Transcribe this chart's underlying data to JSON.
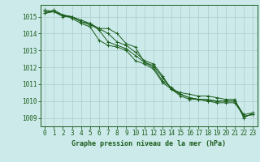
{
  "title": "Graphe pression niveau de la mer (hPa)",
  "background_color": "#cceaea",
  "grid_color": "#aacccc",
  "line_color": "#1a5c1a",
  "xlim": [
    -0.5,
    23.5
  ],
  "ylim": [
    1008.5,
    1015.7
  ],
  "yticks": [
    1009,
    1010,
    1011,
    1012,
    1013,
    1014,
    1015
  ],
  "xticks": [
    0,
    1,
    2,
    3,
    4,
    5,
    6,
    7,
    8,
    9,
    10,
    11,
    12,
    13,
    14,
    15,
    16,
    17,
    18,
    19,
    20,
    21,
    22,
    23
  ],
  "series": [
    [
      1015.2,
      1015.4,
      1015.1,
      1015.0,
      1014.8,
      1014.6,
      1014.3,
      1014.3,
      1014.0,
      1013.4,
      1013.2,
      1012.3,
      1012.1,
      1011.4,
      1010.7,
      1010.5,
      1010.4,
      1010.3,
      1010.3,
      1010.2,
      1010.1,
      1010.1,
      1009.0,
      1009.3
    ],
    [
      1015.2,
      1015.3,
      1015.0,
      1015.0,
      1014.7,
      1014.6,
      1014.2,
      1013.5,
      1013.3,
      1013.1,
      1012.7,
      1012.3,
      1012.0,
      1011.2,
      1010.8,
      1010.4,
      1010.2,
      1010.1,
      1010.1,
      1010.0,
      1010.0,
      1010.0,
      1009.2,
      1009.3
    ],
    [
      1015.3,
      1015.3,
      1015.1,
      1014.9,
      1014.6,
      1014.4,
      1013.6,
      1013.3,
      1013.2,
      1013.0,
      1012.4,
      1012.2,
      1011.9,
      1011.1,
      1010.7,
      1010.3,
      1010.1,
      1010.1,
      1010.0,
      1009.9,
      1009.9,
      1009.9,
      1009.1,
      1009.2
    ],
    [
      1015.4,
      1015.3,
      1015.1,
      1015.0,
      1014.7,
      1014.5,
      1014.3,
      1014.0,
      1013.5,
      1013.3,
      1012.9,
      1012.4,
      1012.2,
      1011.5,
      1010.7,
      1010.4,
      1010.2,
      1010.1,
      1010.0,
      1010.0,
      1010.0,
      1010.0,
      1009.1,
      1009.2
    ]
  ],
  "tick_fontsize": 5.5,
  "xlabel_fontsize": 6.0
}
